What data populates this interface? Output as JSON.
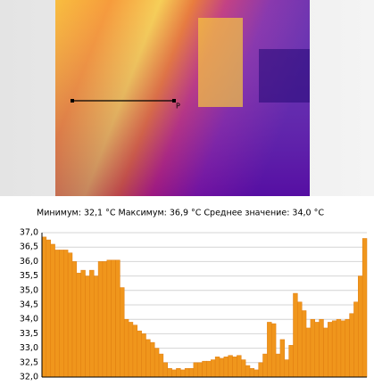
{
  "chart_data": {
    "type": "bar",
    "annotations": [
      "Минимум: 32,1 °C Максимум: 36,9 °C Среднее значение: 34,0 °C",
      "P"
    ],
    "values": [
      36.85,
      36.75,
      36.6,
      36.4,
      36.4,
      36.4,
      36.3,
      36.0,
      35.6,
      35.7,
      35.5,
      35.7,
      35.5,
      36.0,
      36.0,
      36.05,
      36.05,
      36.05,
      35.1,
      34.0,
      33.9,
      33.8,
      33.6,
      33.5,
      33.3,
      33.2,
      33.0,
      32.8,
      32.5,
      32.3,
      32.25,
      32.3,
      32.25,
      32.3,
      32.3,
      32.5,
      32.5,
      32.55,
      32.55,
      32.6,
      32.7,
      32.65,
      32.7,
      32.75,
      32.7,
      32.75,
      32.6,
      32.4,
      32.3,
      32.25,
      32.5,
      32.8,
      33.9,
      33.85,
      32.8,
      33.3,
      32.6,
      33.1,
      34.9,
      34.6,
      34.3,
      33.7,
      34.0,
      33.9,
      34.0,
      33.7,
      33.9,
      33.95,
      34.0,
      33.95,
      34.0,
      34.2,
      34.6,
      35.5,
      36.8
    ],
    "color": "#f0961c",
    "ylim": [
      32,
      37
    ],
    "yticks": [
      {
        "value": 32,
        "label": "32,0"
      },
      {
        "value": 32.5,
        "label": "32,5"
      },
      {
        "value": 33,
        "label": "33,0"
      },
      {
        "value": 33.5,
        "label": "33,5"
      },
      {
        "value": 34,
        "label": "34,0"
      },
      {
        "value": 34.5,
        "label": "34,5"
      },
      {
        "value": 35,
        "label": "35,0"
      },
      {
        "value": 35.5,
        "label": "35,5"
      },
      {
        "value": 36,
        "label": "36,0"
      },
      {
        "value": 36.5,
        "label": "36,5"
      },
      {
        "value": 37,
        "label": "37,0"
      }
    ],
    "grid": true
  }
}
